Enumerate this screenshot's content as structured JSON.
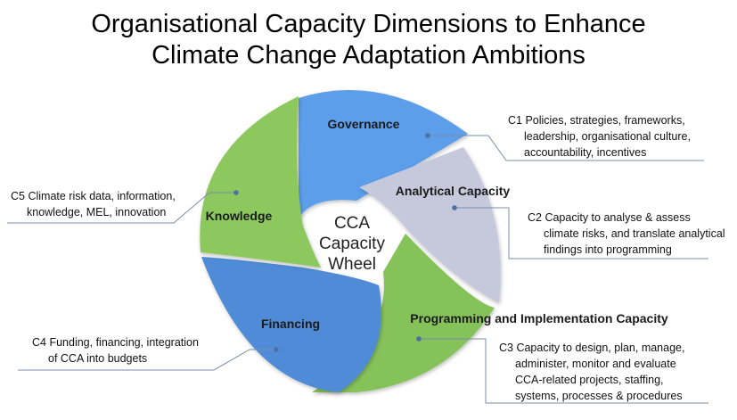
{
  "title": {
    "line1": "Organisational Capacity Dimensions to Enhance",
    "line2": "Climate Change Adaptation Ambitions"
  },
  "center": {
    "line1": "CCA",
    "line2": "Capacity",
    "line3": "Wheel"
  },
  "segments": [
    {
      "name": "Governance",
      "color": "#5b9ee9"
    },
    {
      "name": "Analytical Capacity",
      "color": "#c6c8dc"
    },
    {
      "name": "Programming and Implementation Capacity",
      "color": "#86c25a"
    },
    {
      "name": "Financing",
      "color": "#4f8bd6"
    },
    {
      "name": "Knowledge",
      "color": "#8dc85f"
    }
  ],
  "callouts": {
    "c1": {
      "line1": "C1 Policies, strategies, frameworks,",
      "line2": "leadership, organisational culture,",
      "line3": "accountability, incentives"
    },
    "c2": {
      "line1": "C2 Capacity to analyse & assess",
      "line2": "climate risks, and translate analytical",
      "line3": "findings into programming"
    },
    "c3": {
      "line1": "C3 Capacity to design, plan, manage,",
      "line2": "administer, monitor and evaluate",
      "line3": "CCA-related projects, staffing,",
      "line4": "systems, processes & procedures"
    },
    "c4": {
      "line1": "C4 Funding, financing, integration",
      "line2": "of CCA into budgets"
    },
    "c5": {
      "line1": "C5 Climate risk data, information,",
      "line2": "knowledge, MEL, innovation"
    }
  },
  "connector_color": "#4a6fa5"
}
